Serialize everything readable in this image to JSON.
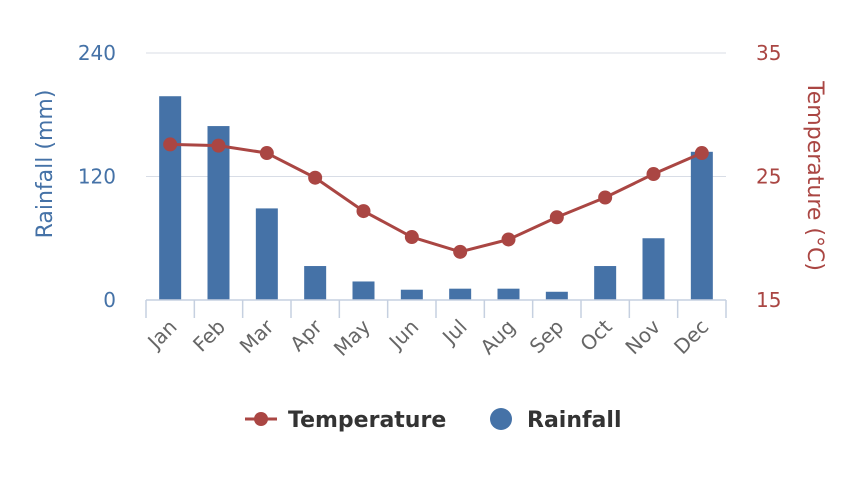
{
  "chart_data": {
    "type": "bar+line",
    "categories": [
      "Jan",
      "Feb",
      "Mar",
      "Apr",
      "May",
      "Jun",
      "Jul",
      "Aug",
      "Sep",
      "Oct",
      "Nov",
      "Dec"
    ],
    "series": [
      {
        "name": "Rainfall",
        "type": "bar",
        "axis": "left",
        "color": "#4572a7",
        "values": [
          198,
          169,
          89,
          33,
          18,
          10,
          11,
          11,
          8,
          33,
          60,
          144
        ]
      },
      {
        "name": "Temperature",
        "type": "line",
        "axis": "right",
        "color": "#aa4643",
        "values": [
          27.6,
          27.5,
          26.9,
          24.9,
          22.2,
          20.1,
          18.9,
          19.9,
          21.7,
          23.3,
          25.2,
          26.9
        ]
      }
    ],
    "y_left": {
      "label": "Rainfall (mm)",
      "min": 0,
      "max": 240,
      "ticks": [
        "0",
        "120",
        "240"
      ]
    },
    "y_right": {
      "label": "Temperature (°C)",
      "min": 15,
      "max": 35,
      "ticks": [
        "15",
        "25",
        "35"
      ]
    },
    "grid": true,
    "legend": {
      "position": "bottom-center",
      "items": [
        "Temperature",
        "Rainfall"
      ]
    }
  }
}
